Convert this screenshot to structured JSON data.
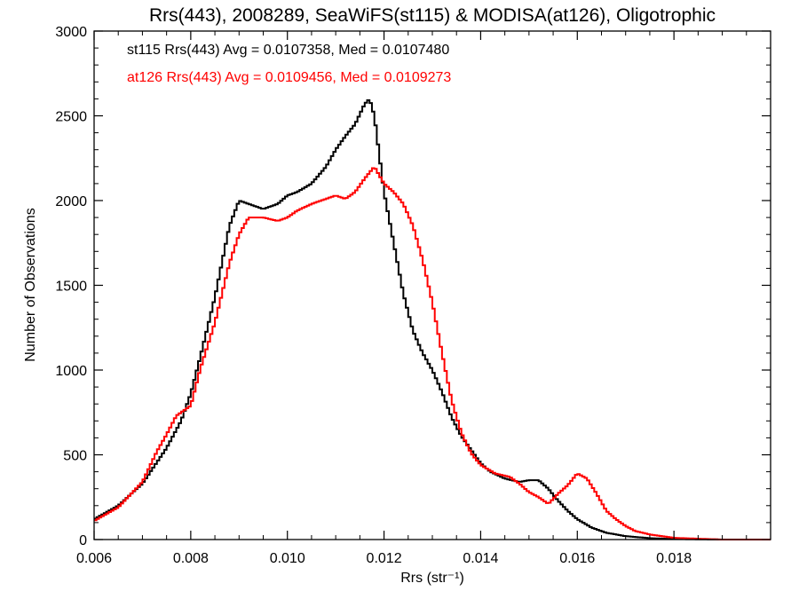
{
  "chart_data": {
    "type": "histogram-step",
    "title": "Rrs(443), 2008289, SeaWiFS(st115) & MODISA(at126), Oligotrophic",
    "xlabel": "Rrs (str⁻¹)",
    "ylabel": "Number of Observations",
    "xlim": [
      0.006,
      0.02
    ],
    "ylim": [
      0,
      3000
    ],
    "xticks": [
      0.006,
      0.008,
      0.01,
      0.012,
      0.014,
      0.016,
      0.018
    ],
    "xtick_labels": [
      "0.006",
      "0.008",
      "0.010",
      "0.012",
      "0.014",
      "0.016",
      "0.018"
    ],
    "yticks": [
      0,
      500,
      1000,
      1500,
      2000,
      2500,
      3000
    ],
    "ytick_labels": [
      "0",
      "500",
      "1000",
      "1500",
      "2000",
      "2500",
      "3000"
    ],
    "grid": false,
    "legend_placement": "top-left",
    "series": [
      {
        "name": "st115",
        "color": "#000000",
        "annotation": "st115 Rrs(443) Avg = 0.0107358, Med = 0.0107480",
        "x": [
          0.006,
          0.0065,
          0.007,
          0.0075,
          0.0078,
          0.008,
          0.0082,
          0.0085,
          0.0088,
          0.009,
          0.0092,
          0.0095,
          0.0098,
          0.01,
          0.0102,
          0.0105,
          0.0108,
          0.011,
          0.0112,
          0.0114,
          0.0116,
          0.0117,
          0.0118,
          0.012,
          0.0122,
          0.0124,
          0.0126,
          0.0128,
          0.013,
          0.0132,
          0.0134,
          0.0136,
          0.0138,
          0.014,
          0.0142,
          0.0145,
          0.0148,
          0.015,
          0.0152,
          0.0154,
          0.0156,
          0.0158,
          0.016,
          0.0163,
          0.0166,
          0.017,
          0.0175,
          0.018,
          0.019,
          0.02
        ],
        "y": [
          120,
          200,
          330,
          540,
          700,
          860,
          1080,
          1430,
          1850,
          2000,
          1980,
          1950,
          1980,
          2030,
          2050,
          2100,
          2200,
          2300,
          2380,
          2450,
          2570,
          2600,
          2500,
          2050,
          1750,
          1450,
          1230,
          1100,
          1000,
          870,
          720,
          610,
          530,
          450,
          400,
          360,
          340,
          350,
          350,
          300,
          230,
          170,
          120,
          70,
          40,
          20,
          8,
          3,
          0,
          0
        ]
      },
      {
        "name": "at126",
        "color": "#ff0000",
        "annotation": "at126 Rrs(443) Avg = 0.0109456, Med = 0.0109273",
        "x": [
          0.006,
          0.0065,
          0.007,
          0.0073,
          0.0075,
          0.0077,
          0.008,
          0.0082,
          0.0085,
          0.0088,
          0.009,
          0.0092,
          0.0095,
          0.0098,
          0.01,
          0.0102,
          0.0105,
          0.0108,
          0.011,
          0.0112,
          0.0114,
          0.0116,
          0.0118,
          0.0119,
          0.012,
          0.0122,
          0.0124,
          0.0126,
          0.0128,
          0.013,
          0.0132,
          0.0134,
          0.0136,
          0.0138,
          0.014,
          0.0143,
          0.0146,
          0.0148,
          0.015,
          0.0152,
          0.0154,
          0.0156,
          0.0158,
          0.016,
          0.0162,
          0.0164,
          0.0166,
          0.0168,
          0.017,
          0.0172,
          0.0175,
          0.018,
          0.0185,
          0.019,
          0.02
        ],
        "y": [
          110,
          190,
          340,
          520,
          620,
          730,
          790,
          1010,
          1280,
          1630,
          1800,
          1900,
          1900,
          1880,
          1900,
          1940,
          1980,
          2010,
          2030,
          2010,
          2050,
          2130,
          2200,
          2150,
          2100,
          2050,
          1980,
          1850,
          1650,
          1400,
          1100,
          820,
          630,
          510,
          440,
          390,
          370,
          330,
          280,
          250,
          210,
          270,
          320,
          390,
          360,
          270,
          170,
          120,
          80,
          50,
          30,
          10,
          5,
          0,
          0
        ]
      }
    ]
  }
}
